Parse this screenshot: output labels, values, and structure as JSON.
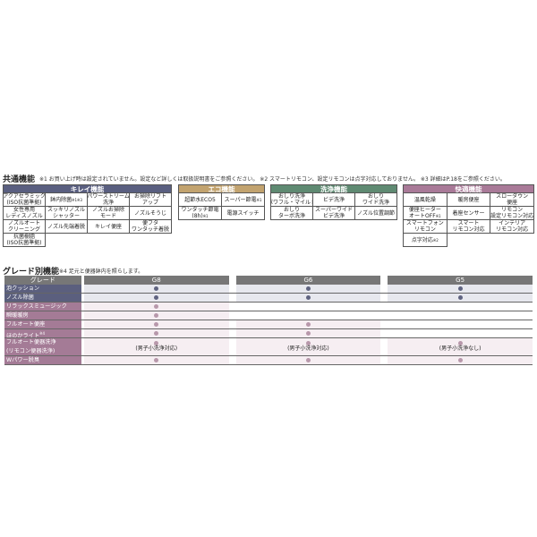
{
  "common": {
    "title": "共通機能",
    "notes": "※1 お買い上げ時は設定されていません。設定など詳しくは取扱説明書をご参照ください。 ※2 スマートリモコン、設定リモコンは点字対応しておりません。 ※3 詳細はP.18をご参照ください。",
    "panels": [
      {
        "name": "キレイ機能",
        "color": "#5a5f80",
        "cols": 4,
        "cells": [
          {
            "l1": "アクアセラミック",
            "l2": "(ISO抗菌準拠)"
          },
          {
            "l1": "鉢内除菌",
            "sup": "※1※3"
          },
          {
            "l1": "パワーストリーム",
            "l2": "洗浄"
          },
          {
            "l1": "お掃除リフト",
            "l2": "アップ"
          },
          {
            "l1": "女性専用",
            "l2": "レディスノズル"
          },
          {
            "l1": "スッキリノズル",
            "l2": "シャッター"
          },
          {
            "l1": "ノズルお掃除",
            "l2": "モード"
          },
          {
            "l1": "ノズルそうじ"
          },
          {
            "l1": "ノズルオート",
            "l2": "クリーニング"
          },
          {
            "l1": "ノズル先端着脱"
          },
          {
            "l1": "キレイ便座"
          },
          {
            "l1": "便フタ",
            "l2": "ワンタッチ着脱"
          },
          {
            "l1": "抗菌樹脂",
            "l2": "(ISO抗菌準拠)"
          }
        ]
      },
      {
        "name": "エコ機能",
        "color": "#c2a36f",
        "cols": 2,
        "cells": [
          {
            "l1": "超節水ECO5"
          },
          {
            "l1": "スーパー節電",
            "sup": "※1"
          },
          {
            "l1": "ワンタッチ節電",
            "l2": "(8h)",
            "sup": "※1"
          },
          {
            "l1": "電源スイッチ"
          }
        ]
      },
      {
        "name": "洗浄機能",
        "color": "#5f8a72",
        "cols": 3,
        "cells": [
          {
            "l1": "おしり洗浄",
            "l2": "(パワフル・マイルド)"
          },
          {
            "l1": "ビデ洗浄"
          },
          {
            "l1": "おしり",
            "l2": "ワイド洗浄"
          },
          {
            "l1": "おしり",
            "l2": "ターボ洗浄"
          },
          {
            "l1": "スーパーワイド",
            "l2": "ビデ洗浄"
          },
          {
            "l1": "ノズル位置調節"
          }
        ]
      },
      {
        "name": "快適機能",
        "color": "#a97a98",
        "cols": 3,
        "cells": [
          {
            "l1": "温風乾燥"
          },
          {
            "l1": "暖房便座"
          },
          {
            "l1": "スローダウン",
            "l2": "便座"
          },
          {
            "l1": "便座ヒーター",
            "l2": "オートOFF",
            "sup": "※1"
          },
          {
            "l1": "着座センサー"
          },
          {
            "l1": "リモコン",
            "l2": "(設定リモコン対応)"
          },
          {
            "l1": "スマートフォン",
            "l2": "リモコン"
          },
          {
            "l1": "スマート",
            "l2": "リモコン対応"
          },
          {
            "l1": "インテリア",
            "l2": "リモコン対応"
          },
          {
            "l1": "点字対応",
            "sup": "※2"
          }
        ]
      }
    ]
  },
  "grade": {
    "title": "グレード別機能",
    "note": "※4 足元と便器鉢内を照らします。",
    "header": [
      "グレード",
      "G8",
      "G6",
      "G5"
    ],
    "colors": {
      "navy_label": "#5b5f7e",
      "mauve_label": "#a47b96",
      "navy_bg": "#e7e8ee",
      "mauve_bg": "#f6eef2",
      "navy_dot": "#5f6380",
      "mauve_dot": "#b898ab"
    },
    "rows": [
      {
        "label": "泡クッション",
        "group": "navy",
        "g8": true,
        "g6": true,
        "g5": true
      },
      {
        "label": "ノズル除菌",
        "group": "navy",
        "g8": true,
        "g6": true,
        "g5": true
      },
      {
        "label": "リラックスミュージック",
        "group": "mauve",
        "g8": true,
        "g6": false,
        "g5": false
      },
      {
        "label": "瞬暖暖房",
        "group": "mauve",
        "g8": true,
        "g6": false,
        "g5": false
      },
      {
        "label": "フルオート便座",
        "group": "mauve",
        "g8": true,
        "g6": true,
        "g5": false
      },
      {
        "label": "ほのかライト",
        "sup": "※4",
        "group": "mauve",
        "g8": true,
        "g6": true,
        "g5": false
      },
      {
        "label": "フルオート便器洗浄",
        "label2": "(リモコン便器洗浄)",
        "group": "mauve",
        "g8": true,
        "g6": true,
        "g5": true,
        "g8n": "(男子小洗浄対応)",
        "g6n": "(男子小洗浄対応)",
        "g5n": "(男子小洗浄なし)"
      },
      {
        "label": "Wパワー脱臭",
        "group": "mauve",
        "g8": true,
        "g6": true,
        "g5": true
      }
    ]
  }
}
